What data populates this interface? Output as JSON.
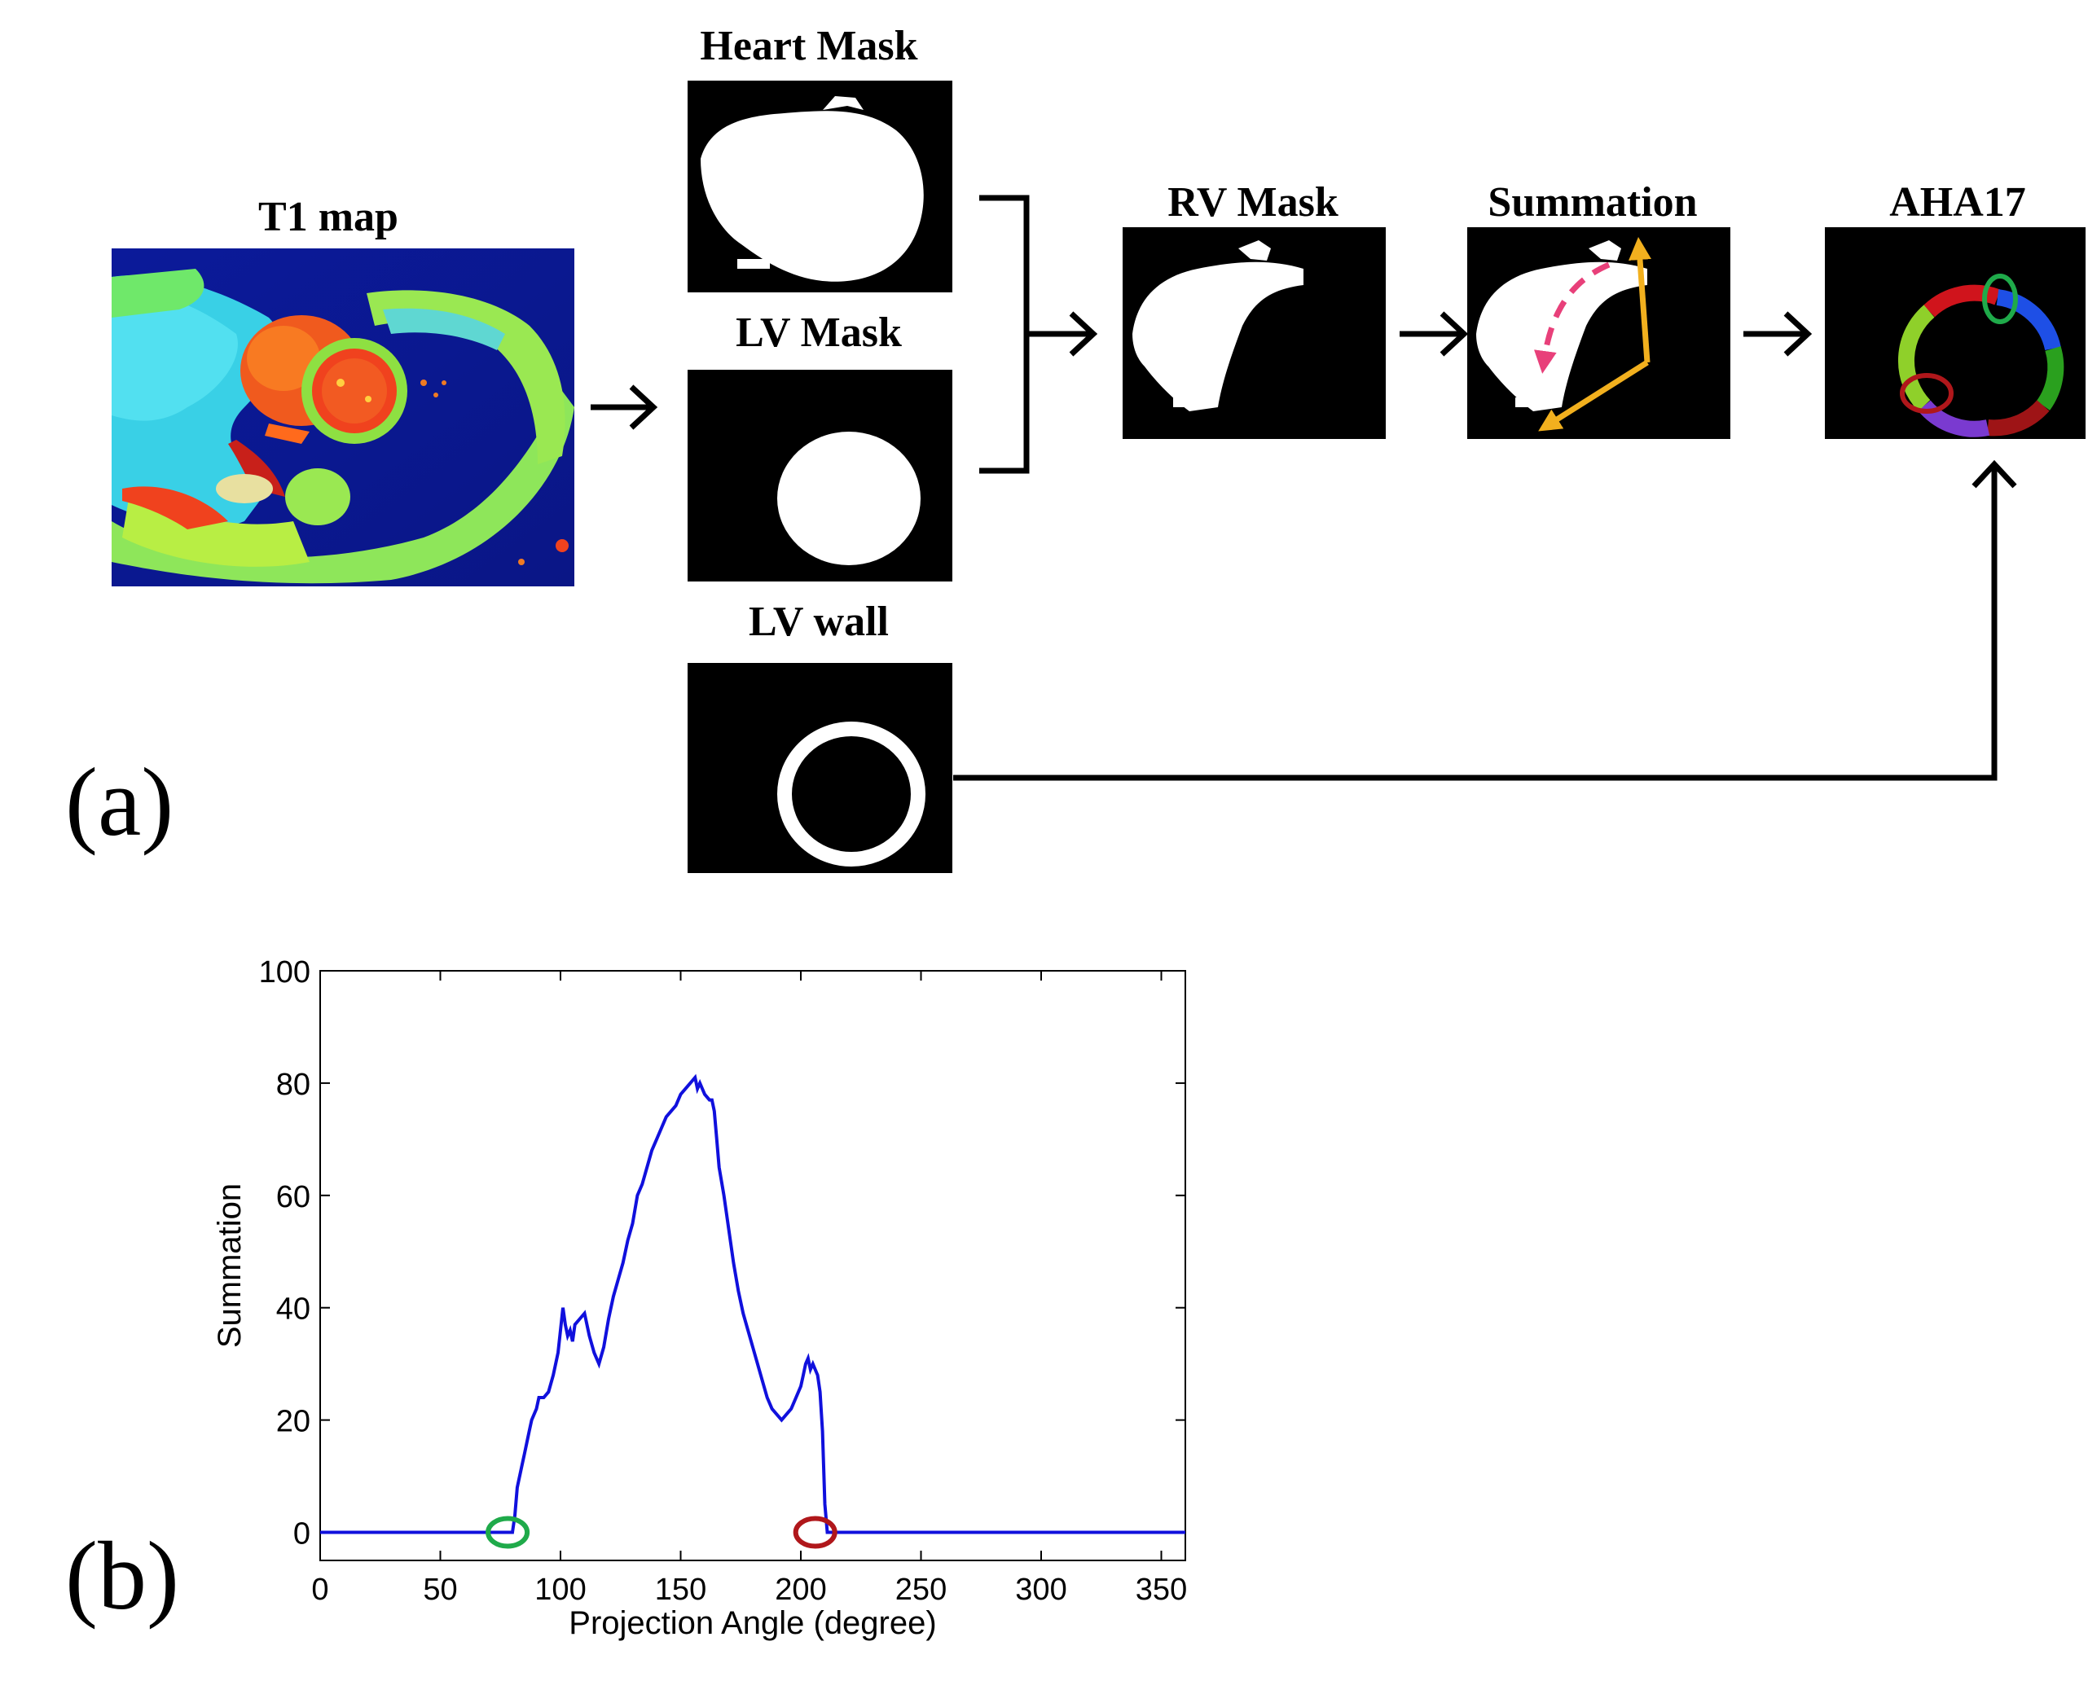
{
  "panel_a": {
    "label": "(a)",
    "t1_map": {
      "title": "T1 map"
    },
    "heart_mask": {
      "title": "Heart Mask"
    },
    "lv_mask": {
      "title": "LV Mask"
    },
    "lv_wall": {
      "title": "LV wall"
    },
    "rv_mask": {
      "title": "RV Mask"
    },
    "summation": {
      "title": "Summation"
    },
    "aha17": {
      "title": "AHA17"
    },
    "colors": {
      "arrow": "#000000",
      "yellow_arrow": "#f2b01e",
      "pink_arrow": "#e8407a",
      "green_marker": "#1faa4a",
      "red_marker": "#b0171b",
      "seg_red": "#d0141c",
      "seg_blue": "#1e4fe6",
      "seg_green": "#2aa01e",
      "seg_darkred": "#9e1416",
      "seg_purple": "#7a3ad0",
      "seg_lime": "#8fd02a"
    }
  },
  "panel_b": {
    "label": "(b)"
  },
  "chart_data": {
    "type": "line",
    "title": "",
    "xlabel": "Projection Angle (degree)",
    "ylabel": "Summation",
    "xlim": [
      0,
      360
    ],
    "ylim": [
      -5,
      100
    ],
    "xticks": [
      "0",
      "50",
      "100",
      "150",
      "200",
      "250",
      "300",
      "350"
    ],
    "yticks": [
      "0",
      "20",
      "40",
      "60",
      "80",
      "100"
    ],
    "grid": false,
    "series": [
      {
        "color": "#1010dd",
        "x": [
          0,
          78,
          80,
          81,
          82,
          84,
          85,
          86,
          87,
          88,
          90,
          91,
          92,
          93,
          95,
          97,
          99,
          100,
          101,
          102,
          103,
          104,
          105,
          106,
          108,
          110,
          112,
          114,
          116,
          118,
          120,
          122,
          124,
          126,
          128,
          130,
          132,
          134,
          136,
          138,
          140,
          142,
          144,
          146,
          148,
          150,
          152,
          154,
          156,
          157,
          158,
          160,
          162,
          163,
          164,
          165,
          166,
          168,
          170,
          172,
          174,
          176,
          178,
          180,
          182,
          184,
          186,
          188,
          190,
          192,
          194,
          196,
          198,
          200,
          201,
          202,
          203,
          204,
          205,
          206,
          207,
          208,
          209,
          210,
          211,
          212,
          360
        ],
        "values": [
          0,
          0,
          0,
          3,
          8,
          12,
          14,
          16,
          18,
          20,
          22,
          24,
          24,
          24,
          25,
          28,
          32,
          36,
          40,
          37,
          35,
          36,
          34,
          37,
          38,
          39,
          35,
          32,
          30,
          33,
          38,
          42,
          45,
          48,
          52,
          55,
          60,
          62,
          65,
          68,
          70,
          72,
          74,
          75,
          76,
          78,
          79,
          80,
          81,
          79,
          80,
          78,
          77,
          77,
          75,
          70,
          65,
          60,
          54,
          48,
          43,
          39,
          36,
          33,
          30,
          27,
          24,
          22,
          21,
          20,
          21,
          22,
          24,
          26,
          28,
          30,
          31,
          29,
          30,
          29,
          28,
          25,
          18,
          5,
          0,
          0,
          0
        ]
      }
    ],
    "markers": [
      {
        "x": 78,
        "y": 0,
        "color": "#1faa4a"
      },
      {
        "x": 206,
        "y": 0,
        "color": "#b0171b"
      }
    ]
  }
}
